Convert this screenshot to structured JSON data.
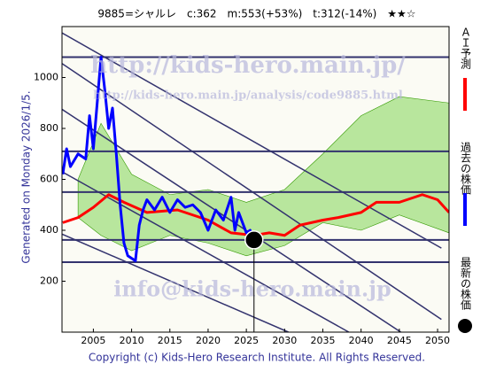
{
  "chart_data": {
    "type": "line",
    "title": "9885=シャルレ　c:362　m:553(+53%)　t:312(-14%)　★★☆",
    "side_note": "Generated on Monday 2026/1/5.",
    "footer": "Copyright (c) Kids-Hero Research Institute. All Rights Reserved.",
    "watermarks": [
      "http://kids-hero.main.jp/",
      "http://kids-hero.main.jp/analysis/code9885.html",
      "info@kids-hero.main.jp"
    ],
    "xlim": [
      2000.9,
      2051.5
    ],
    "ylim": [
      0,
      1200
    ],
    "xticks": [
      2005,
      2010,
      2015,
      2020,
      2025,
      2030,
      2035,
      2040,
      2045,
      2050
    ],
    "yticks": [
      200,
      400,
      600,
      800,
      1000
    ],
    "series": [
      {
        "name": "ＡＩ予測",
        "color": "#ff0000",
        "x": [
          2001,
          2003,
          2005,
          2007,
          2009,
          2012,
          2016,
          2020,
          2023,
          2026,
          2028,
          2030,
          2032,
          2035,
          2037,
          2040,
          2042,
          2045,
          2048,
          2050,
          2051.5
        ],
        "values": [
          430,
          450,
          490,
          540,
          510,
          470,
          480,
          440,
          390,
          380,
          390,
          380,
          420,
          440,
          450,
          470,
          510,
          510,
          540,
          520,
          470
        ]
      },
      {
        "name": "過去の株価",
        "color": "#0000ff",
        "x": [
          2001,
          2001.5,
          2002,
          2003,
          2004,
          2004.5,
          2005,
          2005.5,
          2006,
          2006.5,
          2007,
          2007.5,
          2008,
          2008.5,
          2009,
          2009.5,
          2010,
          2010.5,
          2011,
          2011.5,
          2012,
          2013,
          2014,
          2015,
          2016,
          2017,
          2018,
          2019,
          2020,
          2021,
          2022,
          2023,
          2023.5,
          2024,
          2025,
          2025.5,
          2026
        ],
        "values": [
          620,
          720,
          650,
          700,
          680,
          850,
          720,
          900,
          1080,
          950,
          800,
          880,
          700,
          500,
          350,
          300,
          290,
          280,
          420,
          480,
          520,
          480,
          530,
          470,
          520,
          490,
          500,
          470,
          400,
          480,
          440,
          530,
          400,
          470,
          390,
          400,
          362
        ]
      }
    ],
    "latest": {
      "name": "最新の株価",
      "x": 2026,
      "value": 362,
      "color": "#000000"
    },
    "band": {
      "color": "#66cc33",
      "x": [
        2003,
        2006,
        2010,
        2015,
        2020,
        2025,
        2030,
        2035,
        2040,
        2045,
        2051.5
      ],
      "upper": [
        600,
        820,
        620,
        540,
        560,
        510,
        560,
        700,
        850,
        925,
        900
      ],
      "lower": [
        450,
        380,
        320,
        380,
        350,
        300,
        340,
        430,
        400,
        460,
        390
      ]
    },
    "levels": [
      1080,
      710,
      550,
      362,
      275
    ],
    "trend_lines": [
      {
        "x": [
          2000.9,
          2050.5
        ],
        "values": [
          1175,
          330
        ]
      },
      {
        "x": [
          2000.9,
          2050.5
        ],
        "values": [
          1055,
          50
        ]
      },
      {
        "x": [
          2000.9,
          2045.2
        ],
        "values": [
          875,
          0
        ]
      },
      {
        "x": [
          2000.9,
          2038.4
        ],
        "values": [
          630,
          0
        ]
      },
      {
        "x": [
          2000.9,
          2030.5
        ],
        "values": [
          385,
          0
        ]
      }
    ],
    "line_color": "#33336e"
  }
}
